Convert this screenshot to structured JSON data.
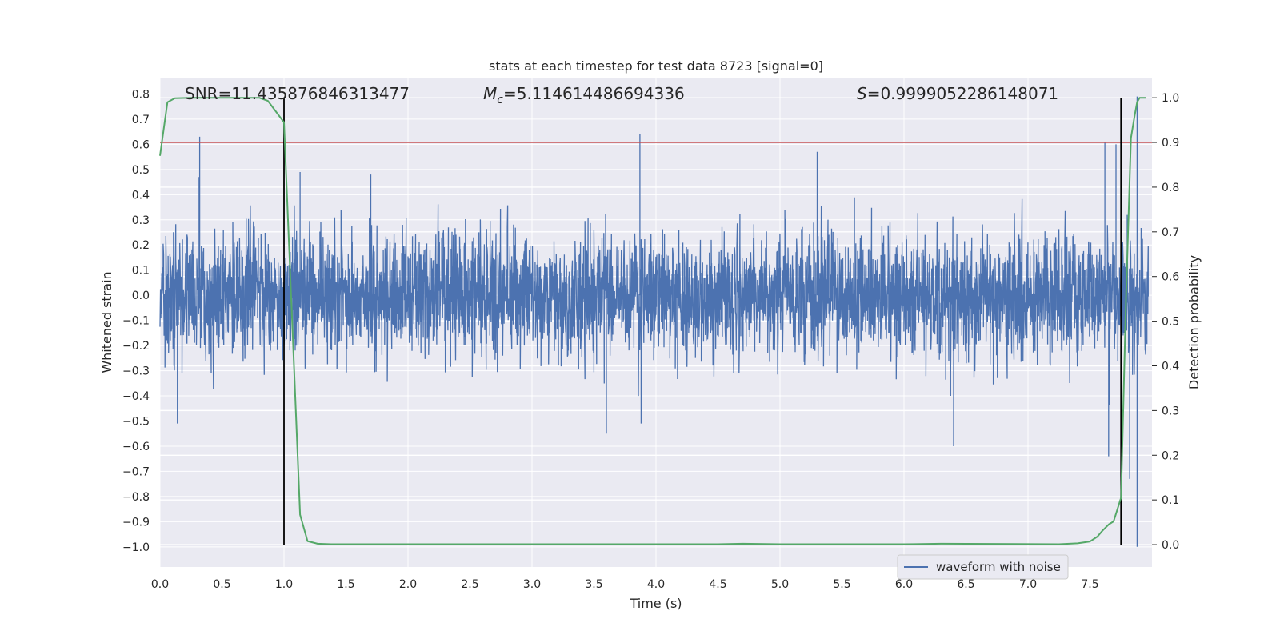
{
  "chart_data": {
    "type": "line",
    "title": "stats at each timestep for test data 8723 [signal=0]",
    "xlabel": "Time (s)",
    "ylabel": "Whitened strain",
    "ylabel_right": "Detection probability",
    "xlim": [
      0.0,
      8.0
    ],
    "ylim": [
      -1.08,
      0.865
    ],
    "ylim_right": [
      -0.05,
      1.045
    ],
    "x_ticks": [
      "0.0",
      "0.5",
      "1.0",
      "1.5",
      "2.0",
      "2.5",
      "3.0",
      "3.5",
      "4.0",
      "4.5",
      "5.0",
      "5.5",
      "6.0",
      "6.5",
      "7.0",
      "7.5"
    ],
    "y_ticks": [
      "0.8",
      "0.7",
      "0.6",
      "0.5",
      "0.4",
      "0.3",
      "0.2",
      "0.1",
      "0.0",
      "-0.1",
      "-0.2",
      "-0.3",
      "-0.4",
      "-0.5",
      "-0.6",
      "-0.7",
      "-0.8",
      "-0.9",
      "-1.0"
    ],
    "y_ticks_right": [
      "1.0",
      "0.9",
      "0.8",
      "0.7",
      "0.6",
      "0.5",
      "0.4",
      "0.3",
      "0.2",
      "0.1",
      "0.0"
    ],
    "annotations": {
      "snr": "SNR=11.435876846313477",
      "mc_symbol": "M",
      "mc_sub": "c",
      "mc_value": "=5.114614486694336",
      "s_symbol": "S",
      "s_value": "=0.9999052286148071"
    },
    "threshold": {
      "value": 0.9,
      "axis": "right",
      "color": "#c44e52"
    },
    "vertical_lines": [
      {
        "x": 1.0
      },
      {
        "x": 7.75
      }
    ],
    "waveform": {
      "name": "waveform with noise",
      "color": "#4c72b0",
      "noise_std": 0.12,
      "peaks": [
        {
          "x": 0.32,
          "y": 0.63
        },
        {
          "x": 0.31,
          "y": 0.47
        },
        {
          "x": 1.13,
          "y": 0.49
        },
        {
          "x": 1.7,
          "y": 0.48
        },
        {
          "x": 3.87,
          "y": 0.64
        },
        {
          "x": 5.3,
          "y": 0.57
        },
        {
          "x": 7.62,
          "y": 0.61
        },
        {
          "x": 7.71,
          "y": 0.6
        },
        {
          "x": 7.88,
          "y": 0.79
        },
        {
          "x": 0.14,
          "y": -0.51
        },
        {
          "x": 3.6,
          "y": -0.55
        },
        {
          "x": 3.88,
          "y": -0.51
        },
        {
          "x": 6.4,
          "y": -0.6
        },
        {
          "x": 7.82,
          "y": -0.73
        },
        {
          "x": 7.88,
          "y": -1.0
        },
        {
          "x": 7.65,
          "y": -0.64
        }
      ]
    },
    "detection_probability": {
      "color": "#55a868",
      "x": [
        0.0,
        0.06,
        0.12,
        0.25,
        0.5,
        0.7,
        0.8,
        0.87,
        1.0,
        1.13,
        1.19,
        1.27,
        1.38,
        1.5,
        3.0,
        4.5,
        4.7,
        5.0,
        6.0,
        6.3,
        7.25,
        7.4,
        7.5,
        7.56,
        7.6,
        7.65,
        7.69,
        7.75,
        7.79,
        7.83,
        7.86,
        7.88,
        7.9,
        7.95
      ],
      "y": [
        0.87,
        0.99,
        0.999,
        1.0,
        1.0,
        1.0,
        1.0,
        0.993,
        0.945,
        0.067,
        0.008,
        0.002,
        0.001,
        0.001,
        0.001,
        0.001,
        0.002,
        0.001,
        0.001,
        0.002,
        0.001,
        0.003,
        0.007,
        0.018,
        0.031,
        0.045,
        0.052,
        0.105,
        0.55,
        0.91,
        0.96,
        0.99,
        1.0,
        1.0
      ]
    },
    "legend": {
      "position": "lower-right"
    },
    "grid": true,
    "colors": {
      "background": "#eaeaf2",
      "grid": "#ffffff",
      "axis_text": "#262626",
      "vline": "#000000"
    }
  }
}
